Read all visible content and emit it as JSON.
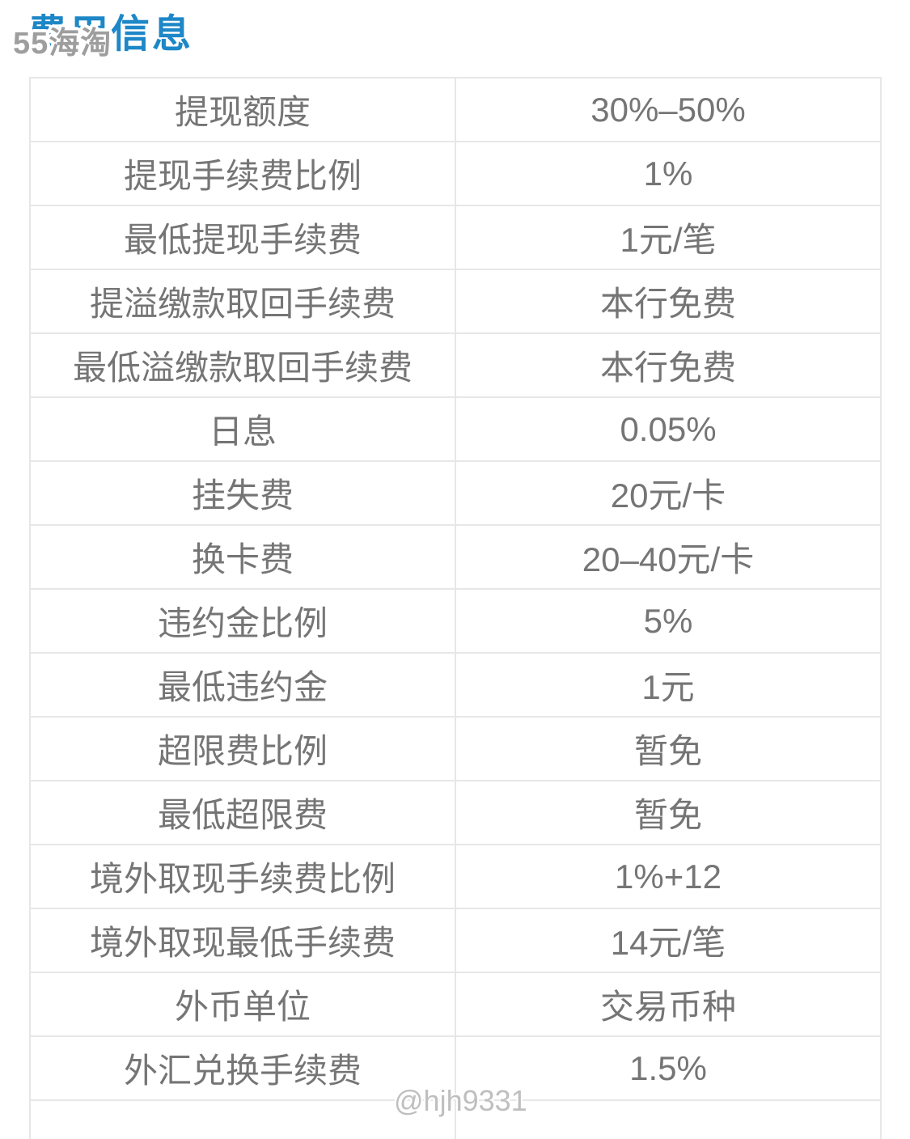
{
  "header": {
    "title": "费用信息"
  },
  "watermarks": {
    "top": "55海淘",
    "bottom": "@hjh9331"
  },
  "table": {
    "rows": [
      {
        "label": "提现额度",
        "value": "30%–50%"
      },
      {
        "label": "提现手续费比例",
        "value": "1%"
      },
      {
        "label": "最低提现手续费",
        "value": "1元/笔"
      },
      {
        "label": "提溢缴款取回手续费",
        "value": "本行免费"
      },
      {
        "label": "最低溢缴款取回手续费",
        "value": "本行免费"
      },
      {
        "label": "日息",
        "value": "0.05%"
      },
      {
        "label": "挂失费",
        "value": "20元/卡"
      },
      {
        "label": "换卡费",
        "value": "20–40元/卡"
      },
      {
        "label": "违约金比例",
        "value": "5%"
      },
      {
        "label": "最低违约金",
        "value": "1元"
      },
      {
        "label": "超限费比例",
        "value": "暂免"
      },
      {
        "label": "最低超限费",
        "value": "暂免"
      },
      {
        "label": "境外取现手续费比例",
        "value": "1%+12"
      },
      {
        "label": "境外取现最低手续费",
        "value": "14元/笔"
      },
      {
        "label": "外币单位",
        "value": "交易币种"
      },
      {
        "label": "外汇兑换手续费",
        "value": "1.5%"
      }
    ]
  },
  "colors": {
    "title_blue": "#1d87c7",
    "cell_text": "#757575",
    "border": "#e7e7e7",
    "watermark_top": "#9e9e9e",
    "watermark_bottom": "#bfbfbf",
    "background": "#ffffff"
  }
}
